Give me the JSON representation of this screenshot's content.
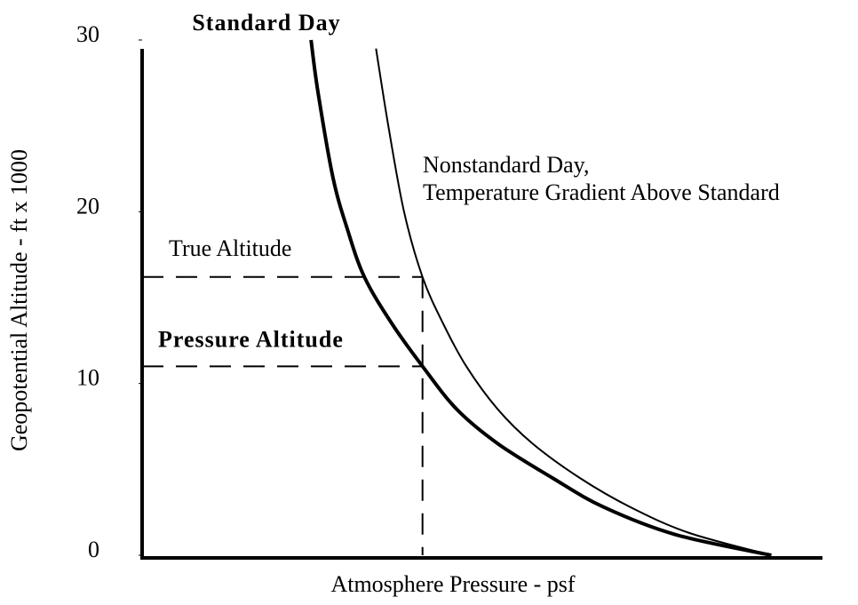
{
  "chart_data": {
    "type": "line",
    "title": "Standard Day",
    "x_label": "Atmosphere Pressure - psf",
    "y_label": "Geopotential Altitude - ft x 1000",
    "annotation": [
      "Nonstandard Day,",
      "Temperature Gradient Above Standard"
    ],
    "xlim": [
      0,
      100
    ],
    "ylim": [
      0,
      30
    ],
    "yticks": [
      0,
      10,
      20,
      30
    ],
    "series": [
      {
        "color": "#000000",
        "line_width": 4,
        "x": [
          24.7,
          25.7,
          27.9,
          30,
          32.5,
          36.5,
          41,
          46,
          52,
          60,
          67.5,
          78,
          92
        ],
        "values": [
          30,
          27,
          22,
          19,
          16.2,
          13.5,
          11,
          8.5,
          6.5,
          4.5,
          2.8,
          1.2,
          0
        ]
      },
      {
        "color": "#000000",
        "line_width": 2,
        "x": [
          34.2,
          36,
          38.3,
          41,
          44,
          47.4,
          52,
          57.1,
          64,
          71.4,
          80,
          92
        ],
        "values": [
          29.5,
          25,
          20,
          16.2,
          13.5,
          11,
          8.5,
          6.5,
          4.5,
          2.8,
          1.3,
          0
        ]
      }
    ],
    "reference_lines": {
      "true_altitude": {
        "label": "True Altitude",
        "value": 16.2
      },
      "pressure_altitude": {
        "label": "Pressure Altitude",
        "value": 11
      },
      "pressure": 41
    }
  }
}
